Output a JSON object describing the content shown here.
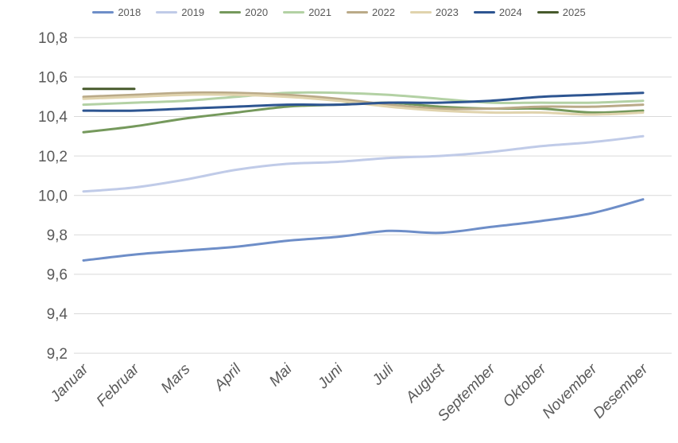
{
  "chart_data": {
    "type": "line",
    "title": "",
    "xlabel": "",
    "ylabel": "",
    "categories": [
      "Januar",
      "Februar",
      "Mars",
      "April",
      "Mai",
      "Juni",
      "Juli",
      "August",
      "September",
      "Oktober",
      "November",
      "Desember"
    ],
    "y_tick_labels": [
      "10,8",
      "10,6",
      "10,4",
      "10,2",
      "10,0",
      "9,8",
      "9,6",
      "9,4",
      "9,2"
    ],
    "ylim": [
      9.2,
      10.8
    ],
    "y_step": 0.2,
    "grid": "horizontal",
    "legend_position": "top",
    "decimal_separator": ",",
    "series": [
      {
        "name": "2018",
        "color": "#6e8ec8",
        "values": [
          9.67,
          9.7,
          9.72,
          9.74,
          9.77,
          9.79,
          9.82,
          9.81,
          9.84,
          9.87,
          9.91,
          9.98
        ]
      },
      {
        "name": "2019",
        "color": "#c0cbe8",
        "values": [
          10.02,
          10.04,
          10.08,
          10.13,
          10.16,
          10.17,
          10.19,
          10.2,
          10.22,
          10.25,
          10.27,
          10.3
        ]
      },
      {
        "name": "2020",
        "color": "#75995c",
        "values": [
          10.32,
          10.35,
          10.39,
          10.42,
          10.45,
          10.46,
          10.47,
          10.45,
          10.44,
          10.44,
          10.42,
          10.43
        ]
      },
      {
        "name": "2021",
        "color": "#b3d1a4",
        "values": [
          10.46,
          10.47,
          10.48,
          10.5,
          10.52,
          10.52,
          10.51,
          10.49,
          10.47,
          10.47,
          10.47,
          10.48
        ]
      },
      {
        "name": "2022",
        "color": "#baaa88",
        "values": [
          10.5,
          10.51,
          10.52,
          10.52,
          10.51,
          10.49,
          10.46,
          10.44,
          10.44,
          10.45,
          10.45,
          10.46
        ]
      },
      {
        "name": "2023",
        "color": "#e0d3ad",
        "values": [
          10.49,
          10.5,
          10.51,
          10.51,
          10.5,
          10.48,
          10.45,
          10.43,
          10.42,
          10.42,
          10.41,
          10.42
        ]
      },
      {
        "name": "2024",
        "color": "#2d5591",
        "values": [
          10.43,
          10.43,
          10.44,
          10.45,
          10.46,
          10.46,
          10.47,
          10.47,
          10.48,
          10.5,
          10.51,
          10.52
        ]
      },
      {
        "name": "2025",
        "color": "#475a2c",
        "values": [
          10.54,
          10.54,
          null,
          null,
          null,
          null,
          null,
          null,
          null,
          null,
          null,
          null
        ]
      }
    ]
  },
  "colors": {
    "axis_text": "#595959",
    "gridline": "#d9d9d9",
    "background": "#ffffff"
  }
}
